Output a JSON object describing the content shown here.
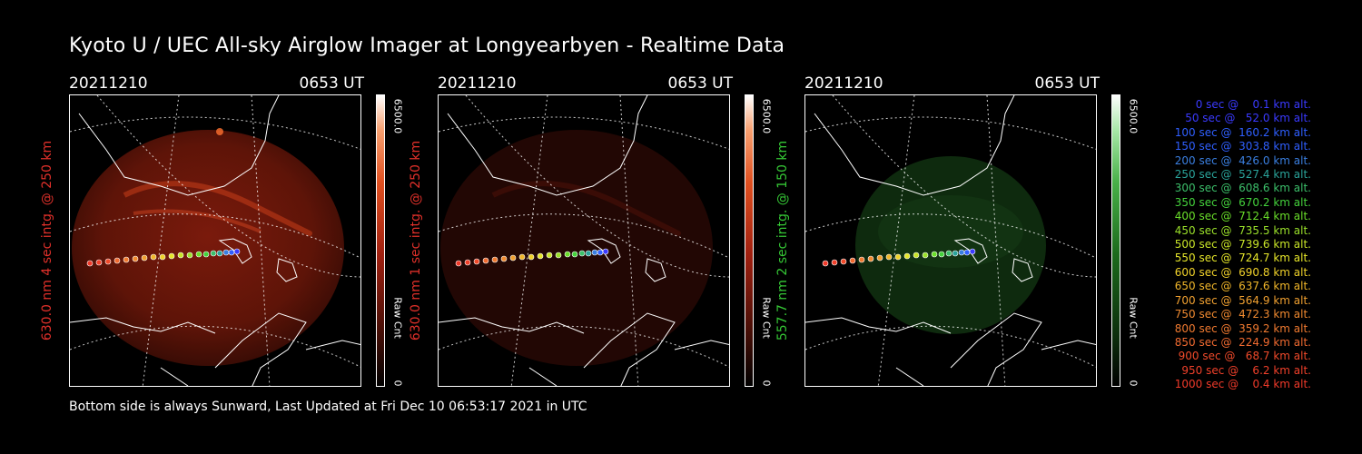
{
  "title": "Kyoto U / UEC All-sky Airglow Imager at Longyearbyen - Realtime Data",
  "footer": "Bottom side is always Sunward, Last Updated at Fri Dec 10 06:53:17 2021 in UTC",
  "colorbar": {
    "max": "6500.0",
    "min": "0",
    "label": "Raw Cnt"
  },
  "panels": [
    {
      "date": "20211210",
      "time": "0653 UT",
      "ylabel": "630.0 nm 4 sec intg. @ 250 km",
      "label_color": "#e0302a",
      "tint": "red-bright"
    },
    {
      "date": "20211210",
      "time": "0653 UT",
      "ylabel": "630.0 nm 1 sec intg. @ 250 km",
      "label_color": "#e0302a",
      "tint": "red-dim"
    },
    {
      "date": "20211210",
      "time": "0653 UT",
      "ylabel": "557.7 nm 2 sec intg. @ 150 km",
      "label_color": "#35c735",
      "tint": "green"
    }
  ],
  "trajectory_legend": [
    {
      "text": "0 sec @    0.1 km alt.",
      "color": "#3a3aff"
    },
    {
      "text": "50 sec @   52.0 km alt.",
      "color": "#3a3aff"
    },
    {
      "text": "100 sec @  160.2 km alt.",
      "color": "#2f5fff"
    },
    {
      "text": "150 sec @  303.8 km alt.",
      "color": "#2f5fff"
    },
    {
      "text": "200 sec @  426.0 km alt.",
      "color": "#3a7fe0"
    },
    {
      "text": "250 sec @  527.4 km alt.",
      "color": "#2aa39a"
    },
    {
      "text": "300 sec @  608.6 km alt.",
      "color": "#3cbf6a"
    },
    {
      "text": "350 sec @  670.2 km alt.",
      "color": "#44d23c"
    },
    {
      "text": "400 sec @  712.4 km alt.",
      "color": "#6ade2a"
    },
    {
      "text": "450 sec @  735.5 km alt.",
      "color": "#9ae02a"
    },
    {
      "text": "500 sec @  739.6 km alt.",
      "color": "#c8e428"
    },
    {
      "text": "550 sec @  724.7 km alt.",
      "color": "#e6e62a"
    },
    {
      "text": "600 sec @  690.8 km alt.",
      "color": "#f0d22a"
    },
    {
      "text": "650 sec @  637.6 km alt.",
      "color": "#f0b62a"
    },
    {
      "text": "700 sec @  564.9 km alt.",
      "color": "#f0a030"
    },
    {
      "text": "750 sec @  472.3 km alt.",
      "color": "#f08a30"
    },
    {
      "text": "800 sec @  359.2 km alt.",
      "color": "#f07a30"
    },
    {
      "text": "850 sec @  224.9 km alt.",
      "color": "#f06a30"
    },
    {
      "text": "900 sec @   68.7 km alt.",
      "color": "#f04a2a"
    },
    {
      "text": "950 sec @    6.2 km alt.",
      "color": "#f0402a"
    },
    {
      "text": "1000 sec @    0.4 km alt.",
      "color": "#f03a2a"
    }
  ]
}
